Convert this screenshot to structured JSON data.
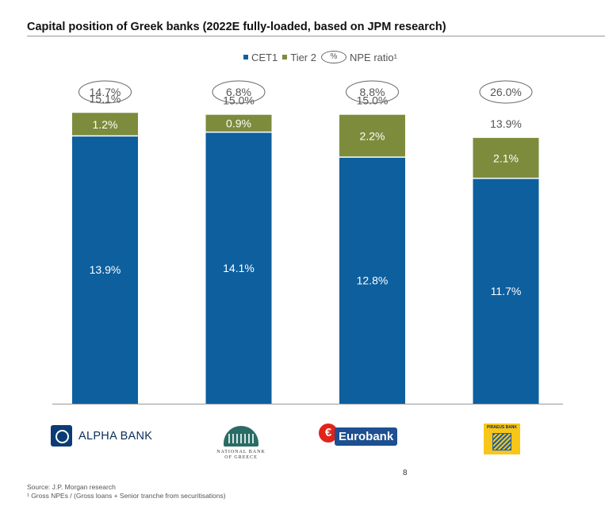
{
  "title": "Capital position of Greek banks (2022E fully-loaded, based on JPM research)",
  "legend": {
    "cet1_label": "CET1",
    "tier2_label": "Tier 2",
    "pct_symbol": "%",
    "npe_label": "NPE ratio¹"
  },
  "colors": {
    "cet1": "#0d5f9e",
    "tier2": "#7d8c3c",
    "oval_stroke": "#666666"
  },
  "chart_data": {
    "type": "bar",
    "stacked": true,
    "categories": [
      "ALPHA BANK",
      "NATIONAL BANK OF GREECE",
      "Eurobank",
      "PIRAEUS BANK"
    ],
    "series": [
      {
        "name": "CET1",
        "values": [
          13.9,
          14.1,
          12.8,
          11.7
        ],
        "labels": [
          "13.9%",
          "14.1%",
          "12.8%",
          "11.7%"
        ]
      },
      {
        "name": "Tier 2",
        "values": [
          1.2,
          0.9,
          2.2,
          2.1
        ],
        "labels": [
          "1.2%",
          "0.9%",
          "2.2%",
          "2.1%"
        ]
      }
    ],
    "totals": [
      "15.1%",
      "15.0%",
      "15.0%",
      "13.9%"
    ],
    "npe_ratio": {
      "name": "NPE ratio¹",
      "values": [
        14.7,
        6.8,
        8.8,
        26.0
      ],
      "labels": [
        "14.7%",
        "6.8%",
        "8.8%",
        "26.0%"
      ]
    },
    "ylim": [
      0,
      17.5
    ],
    "grid": false,
    "legend_position": "top-center"
  },
  "logos": {
    "alpha": "ALPHA BANK",
    "nbg": "NATIONAL BANK\nOF GREECE",
    "eurobank": "Eurobank",
    "piraeus": "PIRAEUS BANK"
  },
  "page_number": "8",
  "source": "Source: J.P. Morgan research",
  "footnote": "¹ Gross NPEs / (Gross loans + Senior tranche from securitisations)"
}
